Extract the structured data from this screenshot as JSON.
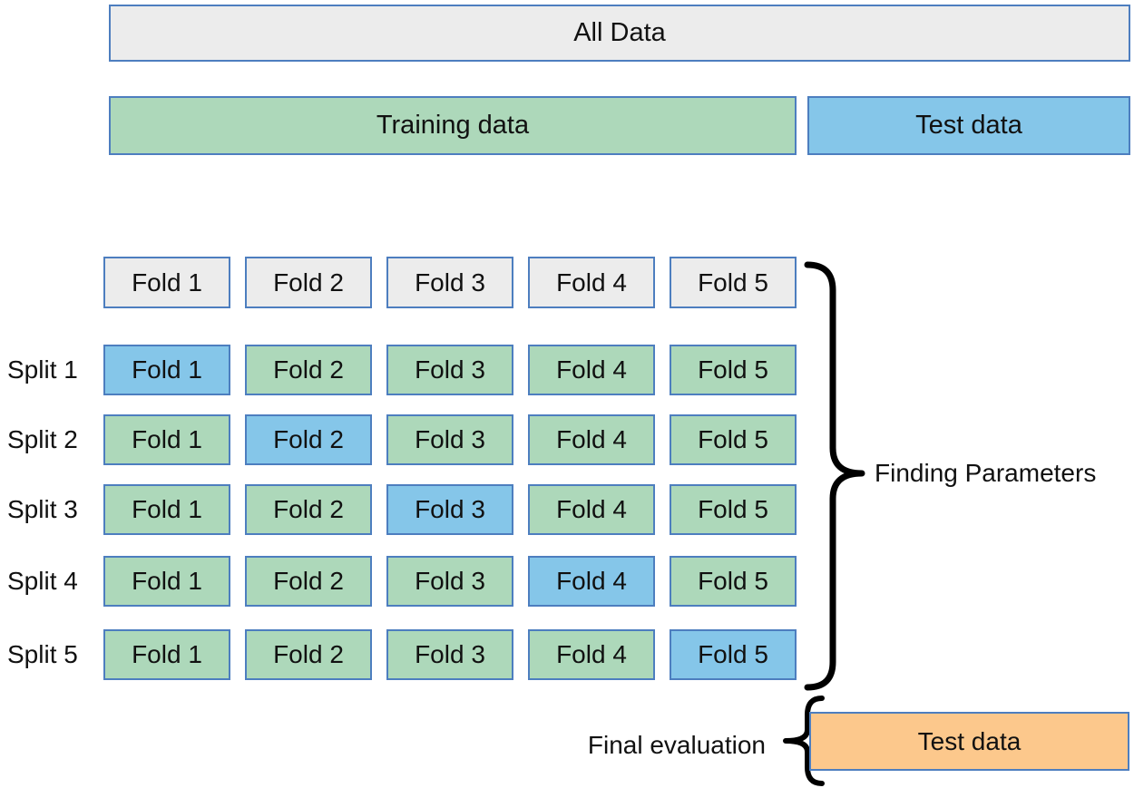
{
  "colors": {
    "train_green": "#add8ba",
    "test_blue": "#85c6e9",
    "neutral_gray": "#ececec",
    "final_orange": "#fcc88c",
    "box_border": "#4d7ebf",
    "ink": "#111111"
  },
  "top_bars": {
    "all_data": "All Data",
    "training_data": "Training data",
    "test_data": "Test data"
  },
  "grid": {
    "header_folds": [
      "Fold 1",
      "Fold 2",
      "Fold 3",
      "Fold 4",
      "Fold 5"
    ],
    "splits": [
      {
        "label": "Split 1",
        "cells": [
          "Fold 1",
          "Fold 2",
          "Fold 3",
          "Fold 4",
          "Fold 5"
        ],
        "test_fold_index": 0
      },
      {
        "label": "Split 2",
        "cells": [
          "Fold 1",
          "Fold 2",
          "Fold 3",
          "Fold 4",
          "Fold 5"
        ],
        "test_fold_index": 1
      },
      {
        "label": "Split 3",
        "cells": [
          "Fold 1",
          "Fold 2",
          "Fold 3",
          "Fold 4",
          "Fold 5"
        ],
        "test_fold_index": 2
      },
      {
        "label": "Split 4",
        "cells": [
          "Fold 1",
          "Fold 2",
          "Fold 3",
          "Fold 4",
          "Fold 5"
        ],
        "test_fold_index": 3
      },
      {
        "label": "Split 5",
        "cells": [
          "Fold 1",
          "Fold 2",
          "Fold 3",
          "Fold 4",
          "Fold 5"
        ],
        "test_fold_index": 4
      }
    ]
  },
  "annotations": {
    "finding_parameters": "Finding Parameters",
    "final_evaluation": "Final evaluation",
    "final_test_data": "Test data"
  }
}
